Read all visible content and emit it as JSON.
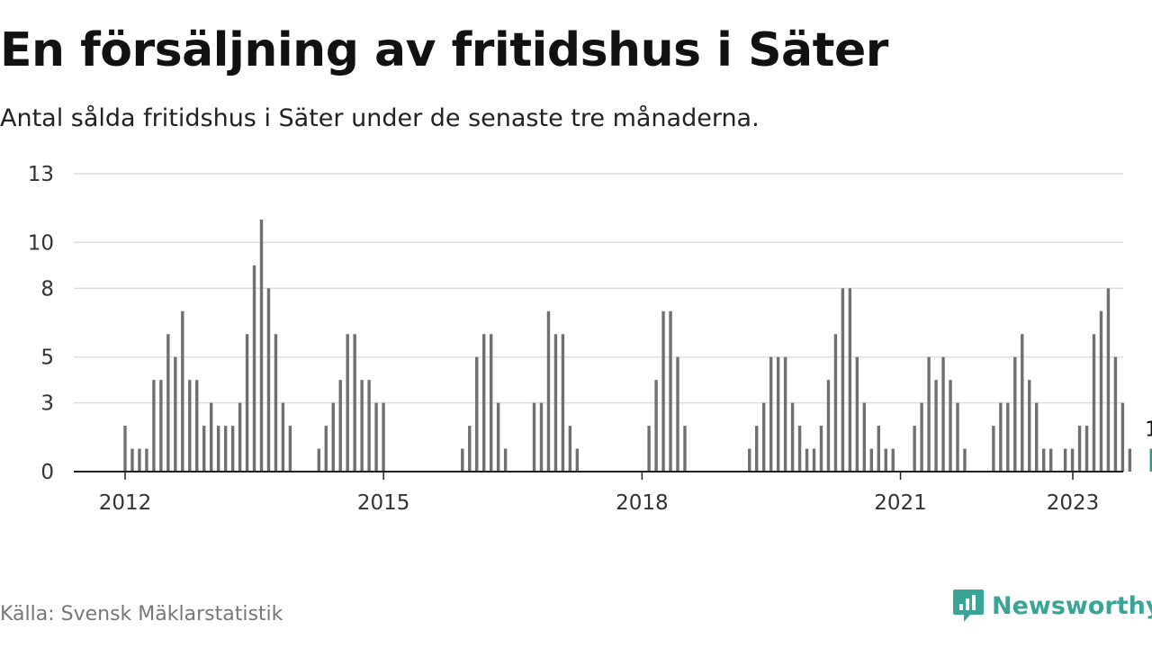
{
  "title": "En försäljning av fritidshus i Säter",
  "subtitle": "Antal sålda fritidshus i Säter under de senaste tre månaderna.",
  "source": "Källa: Svensk Mäklarstatistik",
  "brand": {
    "name": "Newsworthy",
    "icon": "newsworthy-logo-icon",
    "color": "#3aa597"
  },
  "colors": {
    "bar": "#707070",
    "highlight": "#2a9d8f",
    "grid": "#dddddd",
    "axis": "#222222"
  },
  "chart_data": {
    "type": "bar",
    "ylim": [
      0,
      13
    ],
    "grid": true,
    "yticks": [
      0,
      3,
      5,
      8,
      10,
      13
    ],
    "xticks": [
      {
        "label": "2012",
        "value": 2012.0
      },
      {
        "label": "2015",
        "value": 2015.0
      },
      {
        "label": "2018",
        "value": 2018.0
      },
      {
        "label": "2021",
        "value": 2021.0
      },
      {
        "label": "2023",
        "value": 2023.0
      }
    ],
    "x_unit": "year",
    "bar_step": 0.0833,
    "highlight_label": "1",
    "series": [
      {
        "start": 2012.0,
        "values": [
          2,
          1,
          1,
          1,
          4,
          4,
          6,
          5,
          7,
          4,
          4,
          2,
          3,
          2,
          2,
          2,
          3,
          6,
          9,
          11,
          8,
          6,
          3,
          2,
          0,
          0,
          0,
          1,
          2,
          3,
          4,
          6,
          6,
          4,
          4,
          3,
          3,
          0,
          0,
          0,
          0,
          0,
          0,
          0,
          0,
          0,
          0,
          1,
          2,
          5,
          6,
          6,
          3,
          1,
          0,
          0,
          0,
          3,
          3,
          7,
          6,
          6,
          2,
          1,
          0,
          0,
          0,
          0,
          0,
          0,
          0,
          0,
          0,
          2,
          4,
          7,
          7,
          5,
          2,
          0,
          0,
          0,
          0,
          0,
          0,
          0,
          0,
          1,
          2,
          3,
          5,
          5,
          5,
          3,
          2,
          1,
          1,
          2,
          4,
          6,
          8,
          8,
          5,
          3,
          1,
          2,
          1,
          1,
          0,
          0,
          2,
          3,
          5,
          4,
          5,
          4,
          3,
          1,
          0,
          0,
          0,
          2,
          3,
          3,
          5,
          6,
          4,
          3,
          1,
          1,
          0,
          1,
          1,
          2,
          2,
          6,
          7,
          8,
          5,
          3,
          1,
          0,
          0,
          1
        ]
      }
    ]
  }
}
